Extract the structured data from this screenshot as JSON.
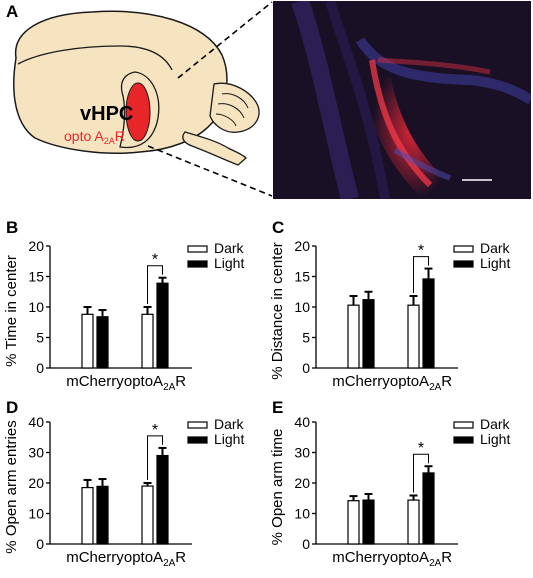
{
  "panels": {
    "a": {
      "letter": "A",
      "region_label": "vHPC",
      "virus_label_prefix": "opto A",
      "virus_label_sub": "2A",
      "virus_label_suffix": "R",
      "colors": {
        "brain_fill": "#f6e4c1",
        "injection_red": "#e8262a",
        "virus_text": "#e8262a"
      }
    },
    "b": {
      "letter": "B"
    },
    "c": {
      "letter": "C"
    },
    "d": {
      "letter": "D"
    },
    "e": {
      "letter": "E"
    }
  },
  "colors": {
    "dark_bar": "#ffffff",
    "light_bar": "#000000",
    "axis": "#000000"
  },
  "chart_data": [
    {
      "panel": "B",
      "type": "bar",
      "ylabel": "% Time in center",
      "ylim": [
        0,
        20
      ],
      "yticks": [
        0,
        5,
        10,
        15,
        20
      ],
      "categories": [
        {
          "main": "mCherry",
          "sub": "",
          "tail": ""
        },
        {
          "main": "optoA",
          "sub": "2A",
          "tail": "R"
        }
      ],
      "series": [
        {
          "name": "Dark",
          "values": [
            8.8,
            8.8
          ],
          "errors": [
            1.2,
            1.2
          ]
        },
        {
          "name": "Light",
          "values": [
            8.4,
            13.9
          ],
          "errors": [
            1.1,
            0.9
          ]
        }
      ],
      "significance": {
        "label": "*",
        "category_index": 1
      },
      "legend_position": "top-right"
    },
    {
      "panel": "C",
      "type": "bar",
      "ylabel": "% Distance in center",
      "ylim": [
        0,
        20
      ],
      "yticks": [
        0,
        5,
        10,
        15,
        20
      ],
      "categories": [
        {
          "main": "mCherry",
          "sub": "",
          "tail": ""
        },
        {
          "main": "optoA",
          "sub": "2A",
          "tail": "R"
        }
      ],
      "series": [
        {
          "name": "Dark",
          "values": [
            10.3,
            10.3
          ],
          "errors": [
            1.5,
            1.5
          ]
        },
        {
          "name": "Light",
          "values": [
            11.2,
            14.6
          ],
          "errors": [
            1.3,
            1.7
          ]
        }
      ],
      "significance": {
        "label": "*",
        "category_index": 1
      },
      "legend_position": "top-right"
    },
    {
      "panel": "D",
      "type": "bar",
      "ylabel": "% Open arm entries",
      "ylim": [
        0,
        40
      ],
      "yticks": [
        0,
        10,
        20,
        30,
        40
      ],
      "categories": [
        {
          "main": "mCherry",
          "sub": "",
          "tail": ""
        },
        {
          "main": "optoA",
          "sub": "2A",
          "tail": "R"
        }
      ],
      "series": [
        {
          "name": "Dark",
          "values": [
            18.5,
            19.0
          ],
          "errors": [
            2.5,
            1.0
          ]
        },
        {
          "name": "Light",
          "values": [
            18.9,
            29.0
          ],
          "errors": [
            2.4,
            2.5
          ]
        }
      ],
      "significance": {
        "label": "*",
        "category_index": 1
      },
      "legend_position": "top-right"
    },
    {
      "panel": "E",
      "type": "bar",
      "ylabel": "% Open arm time",
      "ylim": [
        0,
        40
      ],
      "yticks": [
        0,
        10,
        20,
        30,
        40
      ],
      "categories": [
        {
          "main": "mCherry",
          "sub": "",
          "tail": ""
        },
        {
          "main": "optoA",
          "sub": "2A",
          "tail": "R"
        }
      ],
      "series": [
        {
          "name": "Dark",
          "values": [
            14.2,
            14.4
          ],
          "errors": [
            1.5,
            1.5
          ]
        },
        {
          "name": "Light",
          "values": [
            14.4,
            23.3
          ],
          "errors": [
            2.0,
            2.2
          ]
        }
      ],
      "significance": {
        "label": "*",
        "category_index": 1
      },
      "legend_position": "top-right"
    }
  ]
}
